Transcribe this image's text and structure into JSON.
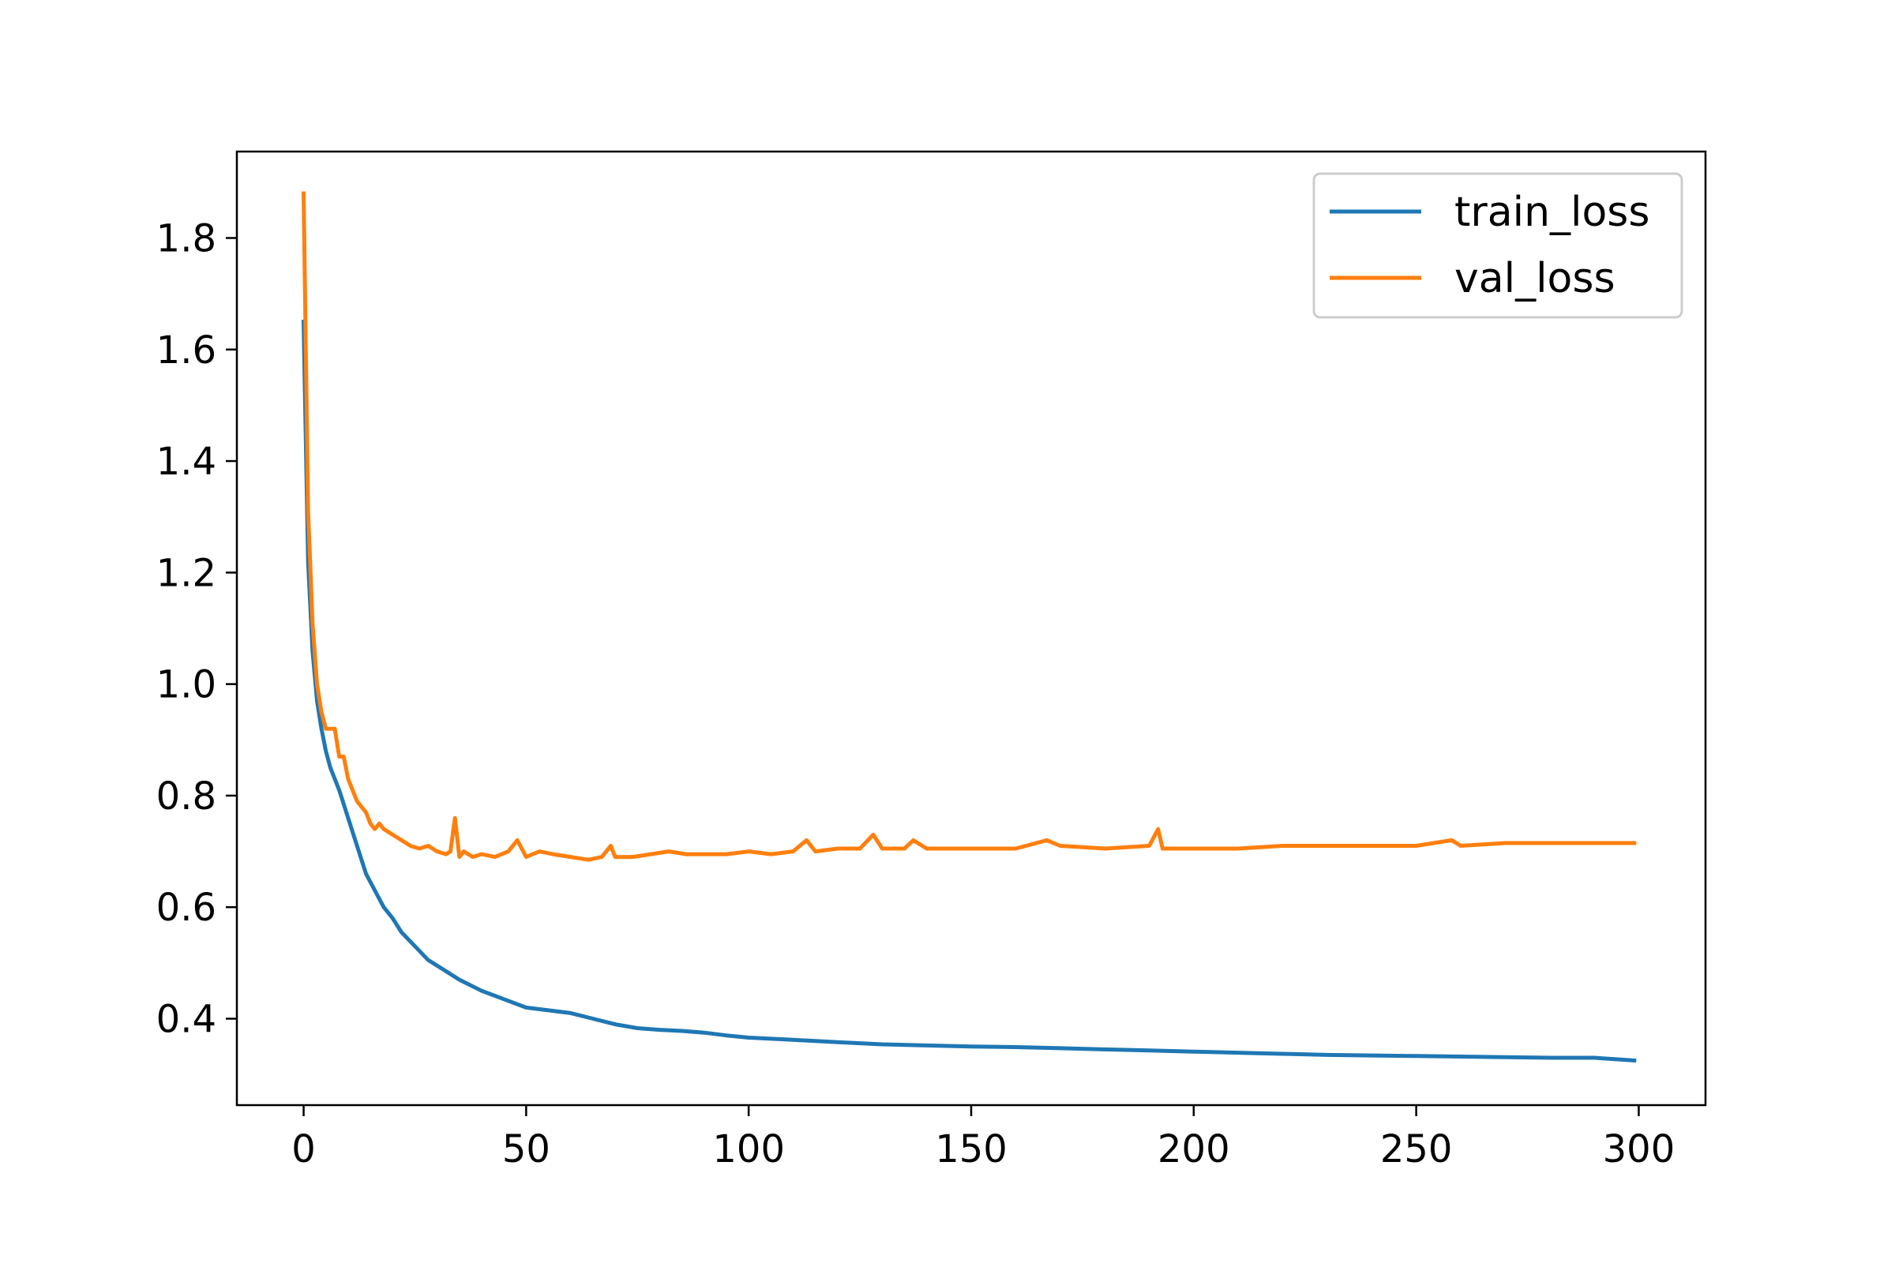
{
  "chart_data": {
    "type": "line",
    "title": "",
    "xlabel": "",
    "ylabel": "",
    "xlim": [
      -15,
      315
    ],
    "ylim": [
      0.245,
      1.955
    ],
    "xticks": [
      0,
      50,
      100,
      150,
      200,
      250,
      300
    ],
    "yticks": [
      0.4,
      0.6,
      0.8,
      1.0,
      1.2,
      1.4,
      1.6,
      1.8
    ],
    "grid": false,
    "legend_position": "top-right",
    "series": [
      {
        "name": "train_loss",
        "color": "#1f77b4",
        "points": [
          [
            0,
            1.65
          ],
          [
            1,
            1.22
          ],
          [
            2,
            1.06
          ],
          [
            3,
            0.97
          ],
          [
            4,
            0.92
          ],
          [
            5,
            0.88
          ],
          [
            6,
            0.85
          ],
          [
            8,
            0.81
          ],
          [
            10,
            0.76
          ],
          [
            12,
            0.71
          ],
          [
            14,
            0.66
          ],
          [
            16,
            0.63
          ],
          [
            18,
            0.6
          ],
          [
            20,
            0.58
          ],
          [
            22,
            0.555
          ],
          [
            25,
            0.53
          ],
          [
            28,
            0.505
          ],
          [
            31,
            0.49
          ],
          [
            35,
            0.47
          ],
          [
            40,
            0.45
          ],
          [
            45,
            0.435
          ],
          [
            50,
            0.42
          ],
          [
            55,
            0.415
          ],
          [
            60,
            0.41
          ],
          [
            65,
            0.4
          ],
          [
            70,
            0.39
          ],
          [
            75,
            0.383
          ],
          [
            80,
            0.38
          ],
          [
            85,
            0.378
          ],
          [
            90,
            0.375
          ],
          [
            95,
            0.37
          ],
          [
            100,
            0.366
          ],
          [
            105,
            0.364
          ],
          [
            110,
            0.362
          ],
          [
            115,
            0.36
          ],
          [
            120,
            0.358
          ],
          [
            125,
            0.356
          ],
          [
            130,
            0.354
          ],
          [
            140,
            0.352
          ],
          [
            150,
            0.35
          ],
          [
            160,
            0.349
          ],
          [
            170,
            0.347
          ],
          [
            180,
            0.345
          ],
          [
            190,
            0.343
          ],
          [
            200,
            0.341
          ],
          [
            210,
            0.339
          ],
          [
            220,
            0.337
          ],
          [
            230,
            0.335
          ],
          [
            240,
            0.334
          ],
          [
            250,
            0.333
          ],
          [
            260,
            0.332
          ],
          [
            270,
            0.331
          ],
          [
            280,
            0.33
          ],
          [
            290,
            0.33
          ],
          [
            299,
            0.325
          ]
        ]
      },
      {
        "name": "val_loss",
        "color": "#ff7f0e",
        "points": [
          [
            0,
            1.88
          ],
          [
            1,
            1.31
          ],
          [
            2,
            1.11
          ],
          [
            3,
            1.0
          ],
          [
            4,
            0.95
          ],
          [
            5,
            0.92
          ],
          [
            6,
            0.92
          ],
          [
            7,
            0.92
          ],
          [
            8,
            0.87
          ],
          [
            9,
            0.87
          ],
          [
            10,
            0.83
          ],
          [
            11,
            0.81
          ],
          [
            12,
            0.79
          ],
          [
            13,
            0.78
          ],
          [
            14,
            0.77
          ],
          [
            15,
            0.75
          ],
          [
            16,
            0.74
          ],
          [
            17,
            0.75
          ],
          [
            18,
            0.74
          ],
          [
            20,
            0.73
          ],
          [
            22,
            0.72
          ],
          [
            24,
            0.71
          ],
          [
            26,
            0.705
          ],
          [
            28,
            0.71
          ],
          [
            30,
            0.7
          ],
          [
            32,
            0.695
          ],
          [
            33,
            0.7
          ],
          [
            34,
            0.76
          ],
          [
            35,
            0.69
          ],
          [
            36,
            0.7
          ],
          [
            38,
            0.69
          ],
          [
            40,
            0.695
          ],
          [
            43,
            0.69
          ],
          [
            46,
            0.7
          ],
          [
            48,
            0.72
          ],
          [
            50,
            0.69
          ],
          [
            53,
            0.7
          ],
          [
            56,
            0.695
          ],
          [
            60,
            0.69
          ],
          [
            64,
            0.685
          ],
          [
            67,
            0.69
          ],
          [
            69,
            0.71
          ],
          [
            70,
            0.69
          ],
          [
            74,
            0.69
          ],
          [
            78,
            0.695
          ],
          [
            82,
            0.7
          ],
          [
            86,
            0.695
          ],
          [
            90,
            0.695
          ],
          [
            95,
            0.695
          ],
          [
            100,
            0.7
          ],
          [
            105,
            0.695
          ],
          [
            110,
            0.7
          ],
          [
            113,
            0.72
          ],
          [
            115,
            0.7
          ],
          [
            120,
            0.705
          ],
          [
            125,
            0.705
          ],
          [
            128,
            0.73
          ],
          [
            130,
            0.705
          ],
          [
            135,
            0.705
          ],
          [
            137,
            0.72
          ],
          [
            140,
            0.705
          ],
          [
            150,
            0.705
          ],
          [
            160,
            0.705
          ],
          [
            167,
            0.72
          ],
          [
            170,
            0.71
          ],
          [
            180,
            0.705
          ],
          [
            190,
            0.71
          ],
          [
            192,
            0.74
          ],
          [
            193,
            0.705
          ],
          [
            200,
            0.705
          ],
          [
            210,
            0.705
          ],
          [
            220,
            0.71
          ],
          [
            230,
            0.71
          ],
          [
            240,
            0.71
          ],
          [
            250,
            0.71
          ],
          [
            258,
            0.72
          ],
          [
            260,
            0.71
          ],
          [
            270,
            0.715
          ],
          [
            280,
            0.715
          ],
          [
            290,
            0.715
          ],
          [
            299,
            0.715
          ]
        ]
      }
    ]
  }
}
